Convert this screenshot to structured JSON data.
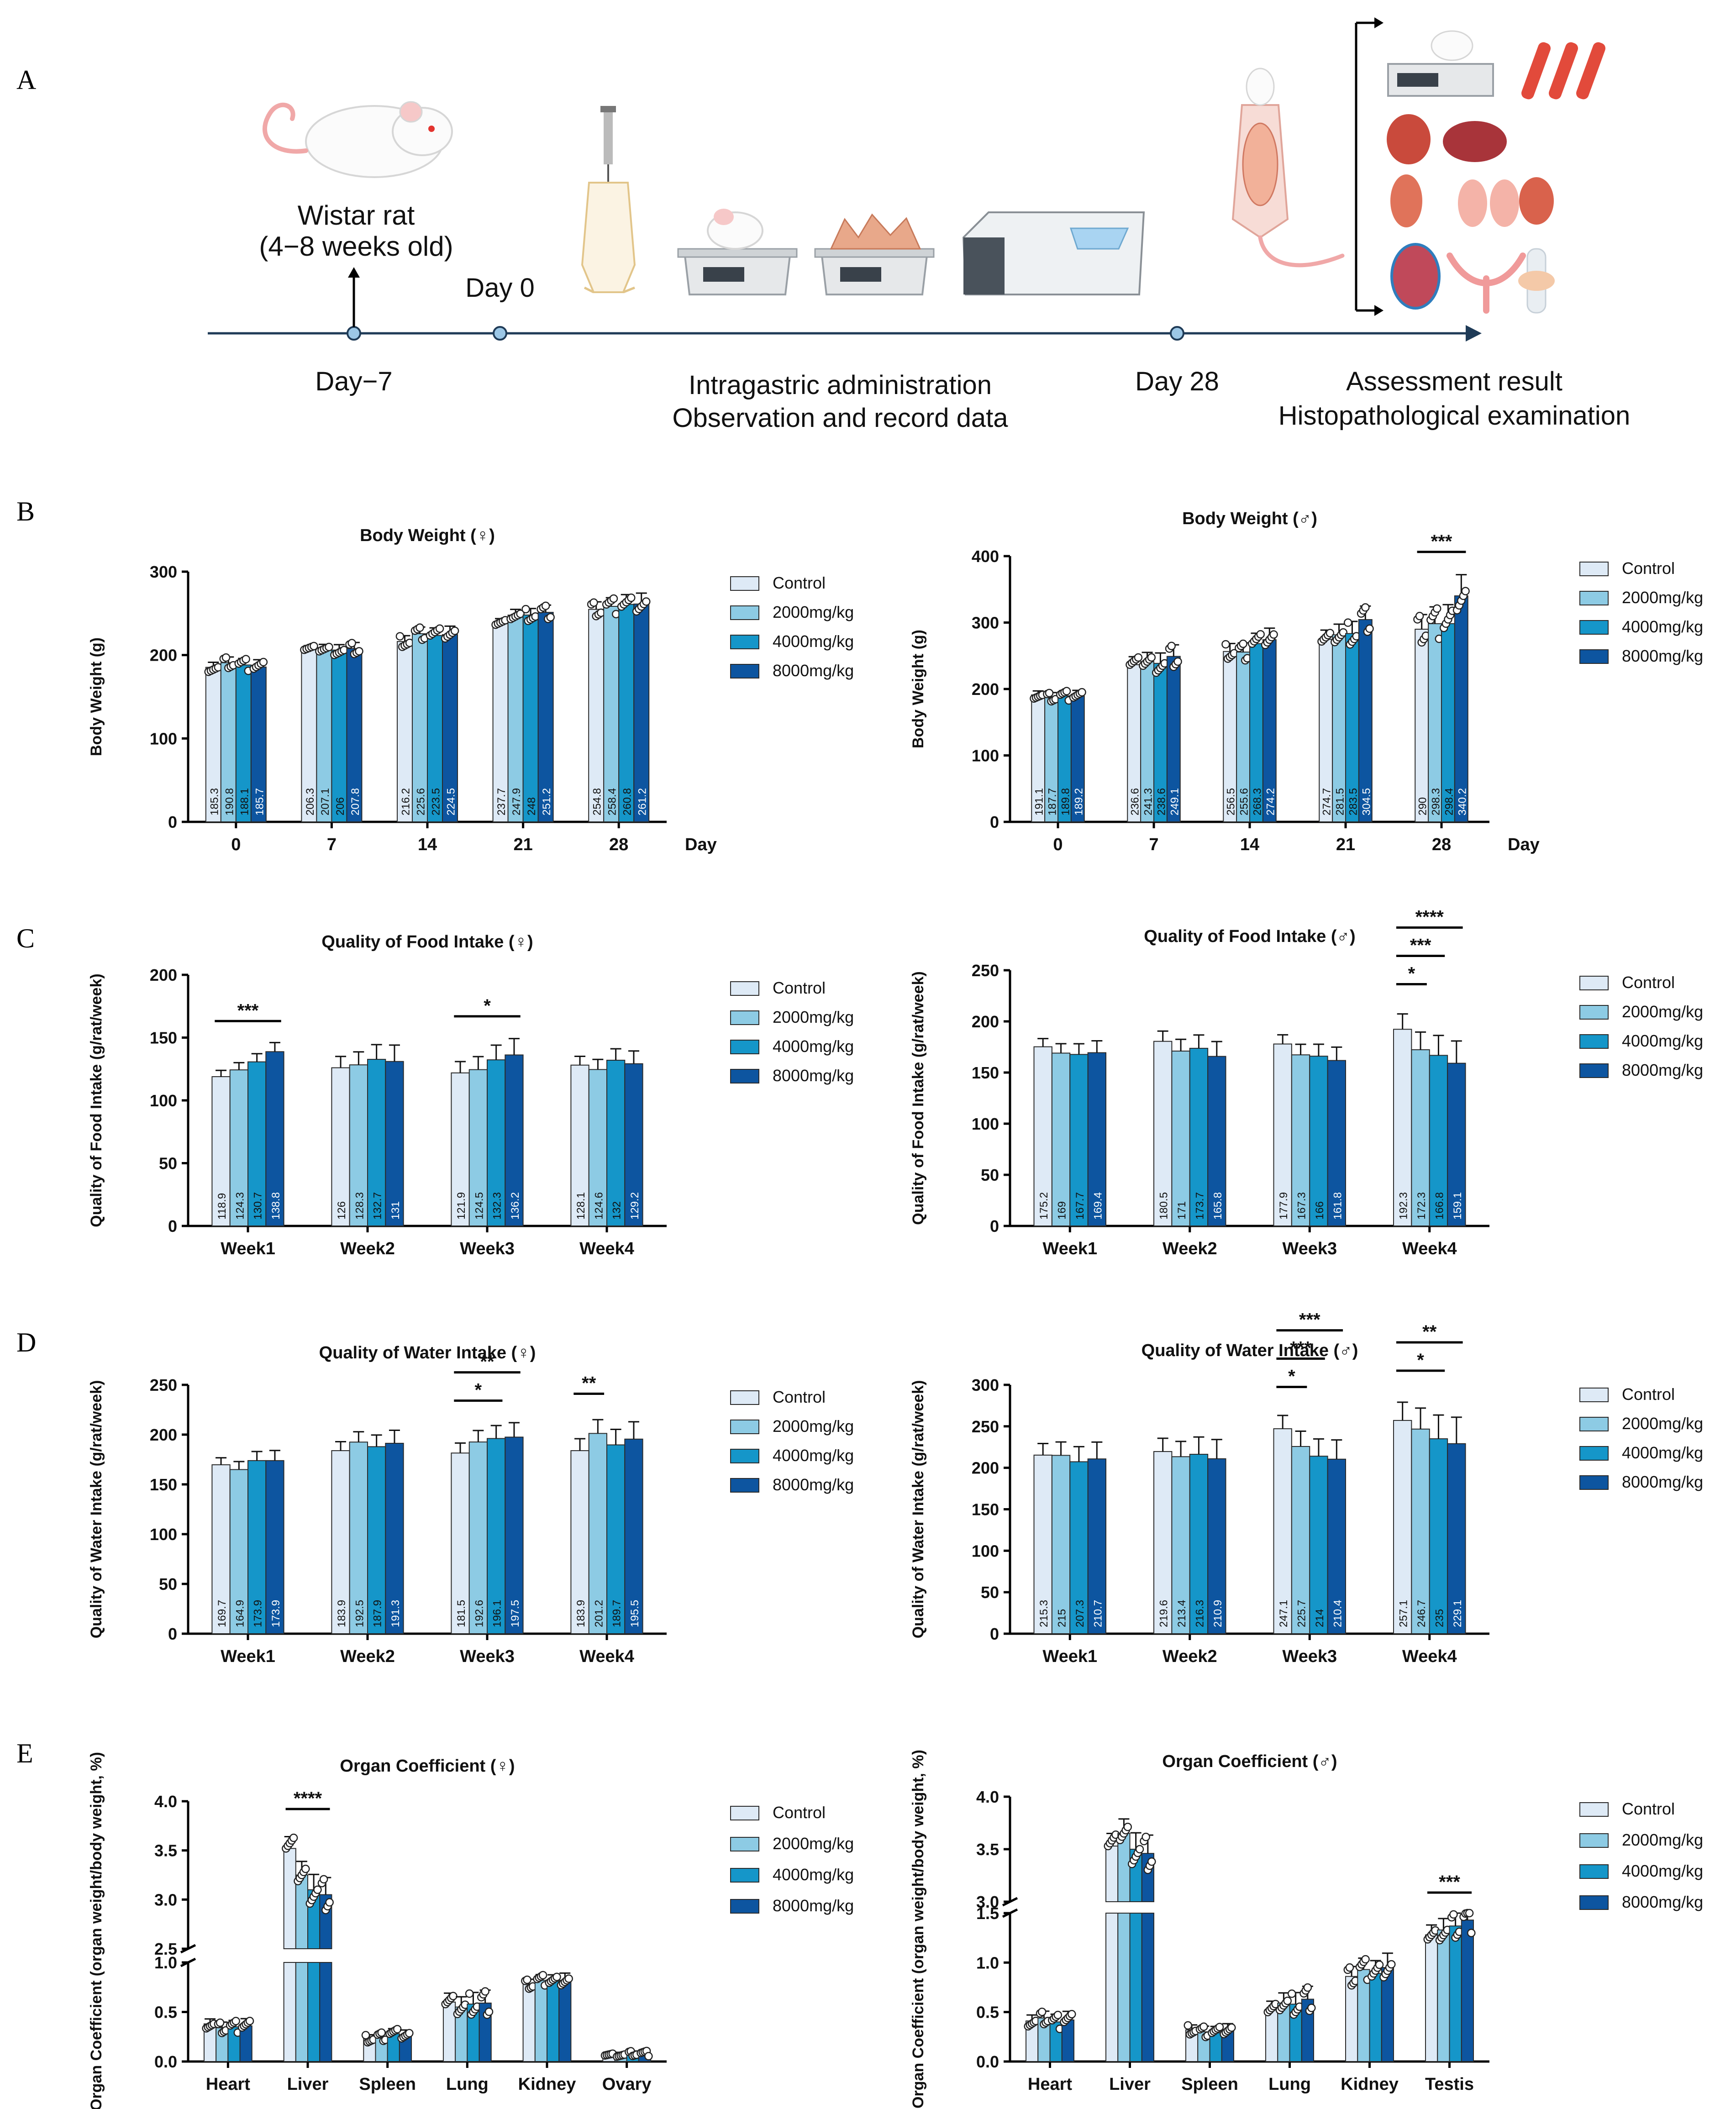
{
  "panel_labels": {
    "A": "A",
    "B": "B",
    "C": "C",
    "D": "D",
    "E": "E"
  },
  "timeline": {
    "animal": "Wistar rat",
    "age": "(4−8 weeks old)",
    "day_minus7": "Day−7",
    "day0": "Day 0",
    "day28": "Day 28",
    "procedure_line1": "Intragastric administration",
    "procedure_line2": "Observation and record data",
    "outcome_line1": "Assessment result",
    "outcome_line2": "Histopathological examination"
  },
  "colors": {
    "Control": "#deeaf6",
    "2000mg/kg": "#8dcbe4",
    "4000mg/kg": "#1596c9",
    "8000mg/kg": "#0d55a0"
  },
  "legend": [
    "Control",
    "2000mg/kg",
    "4000mg/kg",
    "8000mg/kg"
  ],
  "chart_data": [
    {
      "id": "bw_f",
      "type": "bar",
      "title": "Body Weight (♀)",
      "ylabel": "Body Weight  (g)",
      "xlabel": "Day",
      "categories": [
        "0",
        "7",
        "14",
        "21",
        "28"
      ],
      "ylim": [
        0,
        300
      ],
      "yticks": [
        0,
        100,
        200,
        300
      ],
      "series": [
        {
          "name": "Control",
          "values": [
            185.3,
            206.3,
            216.2,
            237.7,
            254.8
          ]
        },
        {
          "name": "2000mg/kg",
          "values": [
            190.8,
            207.1,
            225.6,
            247.9,
            258.4
          ]
        },
        {
          "name": "4000mg/kg",
          "values": [
            188.1,
            206.0,
            223.5,
            248.0,
            260.8
          ]
        },
        {
          "name": "8000mg/kg",
          "values": [
            185.7,
            207.8,
            224.5,
            251.2,
            261.2
          ]
        }
      ],
      "significance": []
    },
    {
      "id": "bw_m",
      "type": "bar",
      "title": "Body Weight (♂)",
      "ylabel": "Body Weight  (g)",
      "xlabel": "Day",
      "categories": [
        "0",
        "7",
        "14",
        "21",
        "28"
      ],
      "ylim": [
        0,
        400
      ],
      "yticks": [
        0,
        100,
        200,
        300,
        400
      ],
      "series": [
        {
          "name": "Control",
          "values": [
            191.1,
            236.6,
            256.5,
            274.7,
            290.0
          ]
        },
        {
          "name": "2000mg/kg",
          "values": [
            187.7,
            241.3,
            255.6,
            281.5,
            298.3
          ]
        },
        {
          "name": "4000mg/kg",
          "values": [
            189.8,
            238.6,
            268.3,
            283.5,
            298.4
          ]
        },
        {
          "name": "8000mg/kg",
          "values": [
            189.2,
            249.1,
            274.2,
            304.5,
            340.2
          ]
        }
      ],
      "significance": [
        {
          "label": "***",
          "cat": 4,
          "from": 0,
          "to": 3,
          "level": 0
        }
      ]
    },
    {
      "id": "food_f",
      "type": "bar",
      "title": "Quality of Food Intake (♀)",
      "ylabel": "Quality of Food Intake (g/rat/week)",
      "xlabel": "",
      "categories": [
        "Week1",
        "Week2",
        "Week3",
        "Week4"
      ],
      "ylim": [
        0,
        200
      ],
      "yticks": [
        0,
        50,
        100,
        150,
        200
      ],
      "series": [
        {
          "name": "Control",
          "values": [
            118.9,
            126.0,
            121.9,
            128.1
          ]
        },
        {
          "name": "2000mg/kg",
          "values": [
            124.3,
            128.3,
            124.5,
            124.6
          ]
        },
        {
          "name": "4000mg/kg",
          "values": [
            130.7,
            132.7,
            132.3,
            132.0
          ]
        },
        {
          "name": "8000mg/kg",
          "values": [
            138.8,
            131.0,
            136.2,
            129.2
          ]
        }
      ],
      "significance": [
        {
          "label": "***",
          "cat": 0,
          "from": 0,
          "to": 3,
          "level": 0
        },
        {
          "label": "*",
          "cat": 2,
          "from": 0,
          "to": 3,
          "level": 0
        }
      ]
    },
    {
      "id": "food_m",
      "type": "bar",
      "title": "Quality of Food Intake (♂)",
      "ylabel": "Quality of Food Intake (g/rat/week)",
      "xlabel": "",
      "categories": [
        "Week1",
        "Week2",
        "Week3",
        "Week4"
      ],
      "ylim": [
        0,
        250
      ],
      "yticks": [
        0,
        50,
        100,
        150,
        200,
        250
      ],
      "series": [
        {
          "name": "Control",
          "values": [
            175.2,
            180.5,
            177.9,
            192.3
          ]
        },
        {
          "name": "2000mg/kg",
          "values": [
            169.0,
            171.0,
            167.3,
            172.3
          ]
        },
        {
          "name": "4000mg/kg",
          "values": [
            167.7,
            173.7,
            166.0,
            166.8
          ]
        },
        {
          "name": "8000mg/kg",
          "values": [
            169.4,
            165.8,
            161.8,
            159.1
          ]
        }
      ],
      "significance": [
        {
          "label": "*",
          "cat": 3,
          "from": 0,
          "to": 1,
          "level": 0
        },
        {
          "label": "***",
          "cat": 3,
          "from": 0,
          "to": 2,
          "level": 1
        },
        {
          "label": "****",
          "cat": 3,
          "from": 0,
          "to": 3,
          "level": 2
        }
      ]
    },
    {
      "id": "water_f",
      "type": "bar",
      "title": "Quality of Water Intake (♀)",
      "ylabel": "Quality of Water Intake (g/rat/week)",
      "xlabel": "",
      "categories": [
        "Week1",
        "Week2",
        "Week3",
        "Week4"
      ],
      "ylim": [
        0,
        250
      ],
      "yticks": [
        0,
        50,
        100,
        150,
        200,
        250
      ],
      "series": [
        {
          "name": "Control",
          "values": [
            169.7,
            183.9,
            181.5,
            183.9
          ]
        },
        {
          "name": "2000mg/kg",
          "values": [
            164.9,
            192.5,
            192.6,
            201.2
          ]
        },
        {
          "name": "4000mg/kg",
          "values": [
            173.9,
            187.9,
            196.1,
            189.7
          ]
        },
        {
          "name": "8000mg/kg",
          "values": [
            173.9,
            191.3,
            197.5,
            195.5
          ]
        }
      ],
      "significance": [
        {
          "label": "*",
          "cat": 2,
          "from": 0,
          "to": 2,
          "level": 0
        },
        {
          "label": "**",
          "cat": 2,
          "from": 0,
          "to": 3,
          "level": 1
        },
        {
          "label": "**",
          "cat": 3,
          "from": 0,
          "to": 1,
          "level": 0
        }
      ]
    },
    {
      "id": "water_m",
      "type": "bar",
      "title": "Quality of Water Intake (♂)",
      "ylabel": "Quality of Water Intake (g/rat/week)",
      "xlabel": "",
      "categories": [
        "Week1",
        "Week2",
        "Week3",
        "Week4"
      ],
      "ylim": [
        0,
        300
      ],
      "yticks": [
        0,
        50,
        100,
        150,
        200,
        250,
        300
      ],
      "series": [
        {
          "name": "Control",
          "values": [
            215.3,
            219.6,
            247.1,
            257.1
          ]
        },
        {
          "name": "2000mg/kg",
          "values": [
            215.0,
            213.4,
            225.7,
            246.7
          ]
        },
        {
          "name": "4000mg/kg",
          "values": [
            207.3,
            216.3,
            214.0,
            235.0
          ]
        },
        {
          "name": "8000mg/kg",
          "values": [
            210.7,
            210.9,
            210.4,
            229.1
          ]
        }
      ],
      "significance": [
        {
          "label": "*",
          "cat": 2,
          "from": 0,
          "to": 1,
          "level": 0
        },
        {
          "label": "***",
          "cat": 2,
          "from": 0,
          "to": 2,
          "level": 1
        },
        {
          "label": "***",
          "cat": 2,
          "from": 0,
          "to": 3,
          "level": 2
        },
        {
          "label": "*",
          "cat": 3,
          "from": 0,
          "to": 2,
          "level": 0
        },
        {
          "label": "**",
          "cat": 3,
          "from": 0,
          "to": 3,
          "level": 1
        }
      ]
    },
    {
      "id": "organ_f",
      "type": "bar",
      "title": "Organ Coefficient (♀)",
      "ylabel": "Organ Coefficient (organ weight/body weight, %)",
      "xlabel": "",
      "categories": [
        "Heart",
        "Liver",
        "Spleen",
        "Lung",
        "Kidney",
        "Ovary"
      ],
      "broken_axis": {
        "lower": [
          0,
          1.0
        ],
        "upper": [
          2.5,
          4.0
        ]
      },
      "yticks_lower": [
        0.0,
        0.5,
        1.0
      ],
      "yticks_upper": [
        2.5,
        3.0,
        3.5,
        4.0
      ],
      "series": [
        {
          "name": "Control",
          "values": [
            0.38,
            3.52,
            0.23,
            0.6,
            0.78,
            0.07
          ]
        },
        {
          "name": "2000mg/kg",
          "values": [
            0.34,
            3.25,
            0.25,
            0.55,
            0.82,
            0.07
          ]
        },
        {
          "name": "4000mg/kg",
          "values": [
            0.35,
            3.1,
            0.28,
            0.58,
            0.81,
            0.08
          ]
        },
        {
          "name": "8000mg/kg",
          "values": [
            0.36,
            3.05,
            0.26,
            0.59,
            0.82,
            0.08
          ]
        }
      ],
      "significance": [
        {
          "label": "****",
          "cat": 1,
          "from": 0,
          "to": 3,
          "level": 0
        }
      ]
    },
    {
      "id": "organ_m",
      "type": "bar",
      "title": "Organ Coefficient (♂)",
      "ylabel": "Organ Coefficient (organ weight/body weight, %)",
      "xlabel": "",
      "categories": [
        "Heart",
        "Liver",
        "Spleen",
        "Lung",
        "Kidney",
        "Testis"
      ],
      "broken_axis": {
        "lower": [
          0,
          1.5
        ],
        "upper": [
          3.0,
          4.0
        ]
      },
      "yticks_lower": [
        0.0,
        0.5,
        1.0,
        1.5
      ],
      "yticks_upper": [
        3.0,
        3.5,
        4.0
      ],
      "series": [
        {
          "name": "Control",
          "values": [
            0.41,
            3.53,
            0.32,
            0.52,
            0.86,
            1.28
          ]
        },
        {
          "name": "2000mg/kg",
          "values": [
            0.44,
            3.65,
            0.3,
            0.59,
            0.93,
            1.33
          ]
        },
        {
          "name": "4000mg/kg",
          "values": [
            0.4,
            3.5,
            0.29,
            0.58,
            0.89,
            1.37
          ]
        },
        {
          "name": "8000mg/kg",
          "values": [
            0.42,
            3.46,
            0.31,
            0.63,
            0.95,
            1.43
          ]
        }
      ],
      "significance": [
        {
          "label": "***",
          "cat": 5,
          "from": 0,
          "to": 3,
          "level": 0
        }
      ]
    }
  ]
}
